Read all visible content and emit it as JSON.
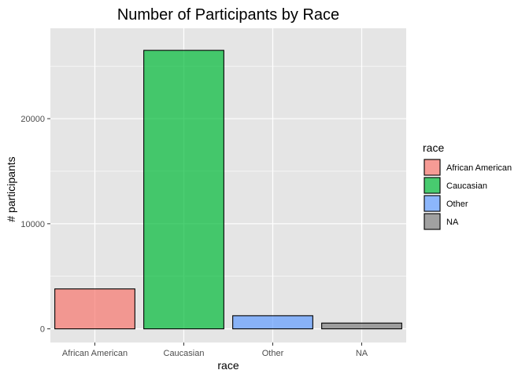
{
  "chart_data": {
    "type": "bar",
    "title": "Number of Participants by Race",
    "xlabel": "race",
    "ylabel": "# participants",
    "categories": [
      "African American",
      "Caucasian",
      "Other",
      "NA"
    ],
    "values": [
      3800,
      26500,
      1250,
      550
    ],
    "ylim": [
      -1300,
      28600
    ],
    "yticks": [
      0,
      10000,
      20000
    ],
    "ytick_labels": [
      "0",
      "10000",
      "20000"
    ],
    "grid": true,
    "legend": {
      "title": "race",
      "placement": "right",
      "entries": [
        "African American",
        "Caucasian",
        "Other",
        "NA"
      ]
    },
    "colors": [
      "#F8766D",
      "#00BA38",
      "#619CFF",
      "#7F7F7F"
    ],
    "panel_background": "#E5E5E5",
    "grid_color": "#FFFFFF"
  }
}
